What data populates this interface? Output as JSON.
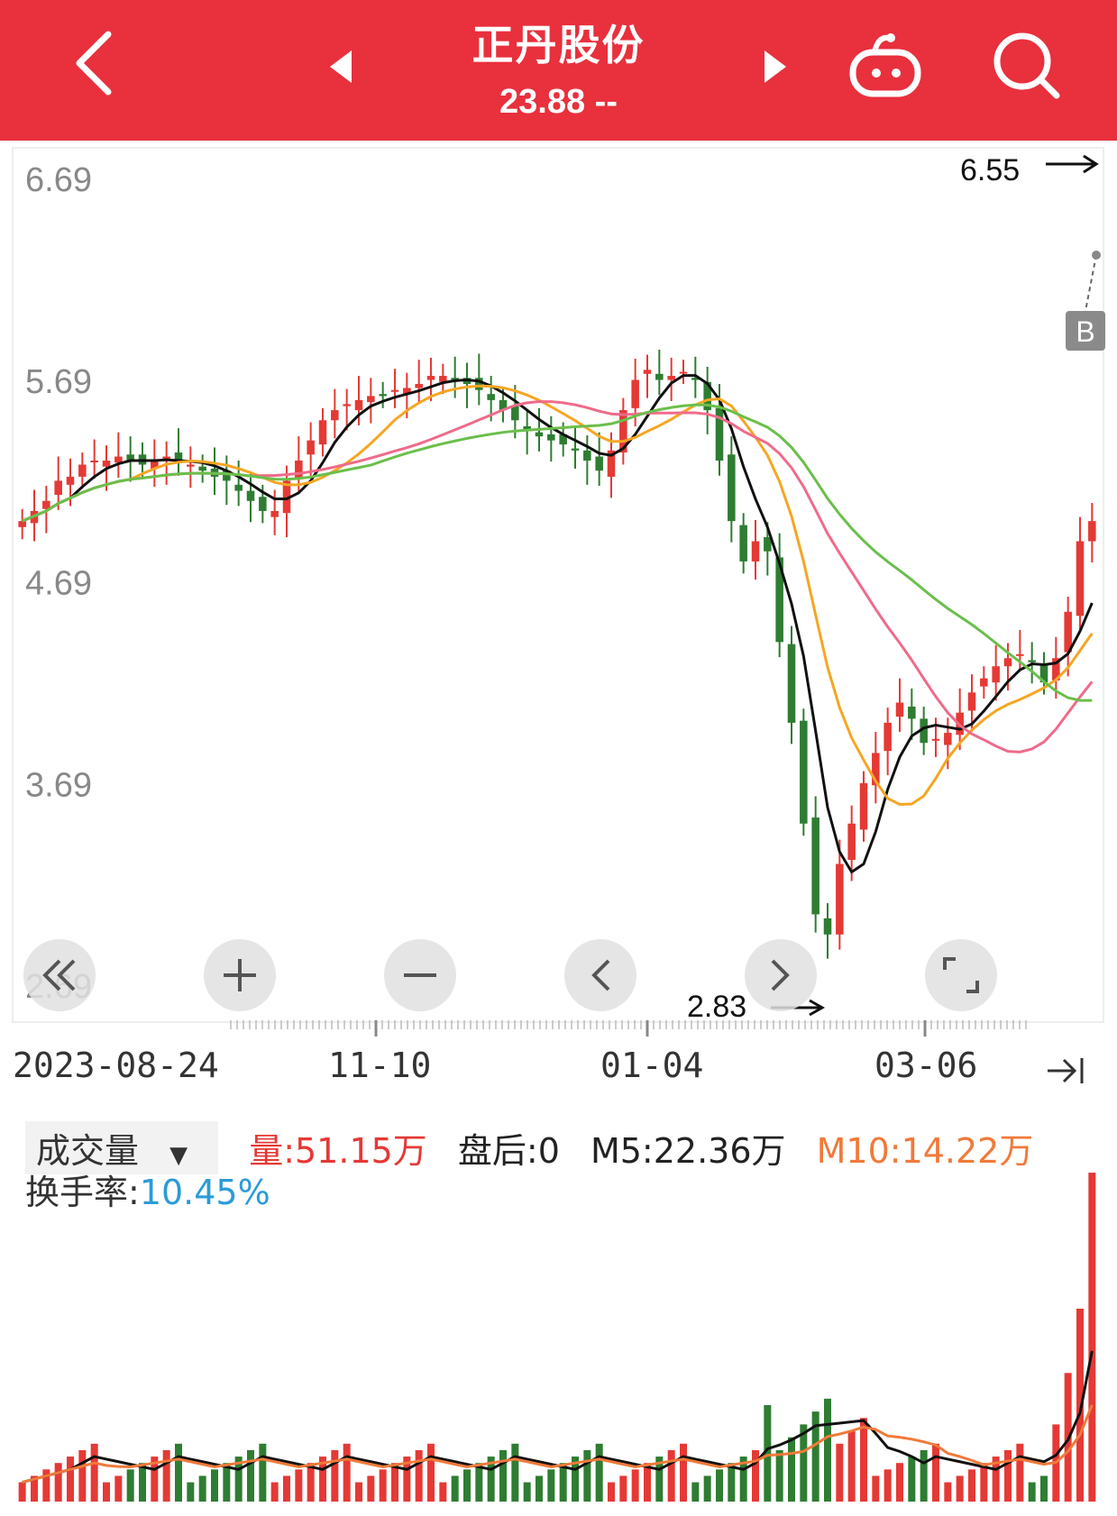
{
  "header": {
    "title": "正丹股份",
    "price": "23.88",
    "change": "--",
    "back_icon": "chevron-left-icon",
    "prev_icon": "triangle-left-icon",
    "next_icon": "triangle-right-icon",
    "bot_icon": "robot-icon",
    "search_icon": "search-icon"
  },
  "price_axis": {
    "labels": [
      "6.69",
      "5.69",
      "4.69",
      "3.69",
      "2.69"
    ]
  },
  "markers": {
    "high_label": "6.55",
    "low_label": "2.83",
    "buy_badge": "B"
  },
  "date_axis": {
    "labels": [
      "2023-08-24",
      "11-10",
      "01-04",
      "03-06"
    ]
  },
  "controls": {
    "items": [
      "rewind-icon",
      "zoom-in-icon",
      "zoom-out-icon",
      "pan-left-icon",
      "pan-right-icon",
      "expand-icon"
    ]
  },
  "volume": {
    "selector_label": "成交量",
    "volume_text": "量:51.15万",
    "after_hours_text": "盘后:0",
    "m5_text": "M5:22.36万",
    "m10_text": "M10:14.22万",
    "turnover_label": "换手率:",
    "turnover_value": "10.45%"
  },
  "colors": {
    "header_bg": "#e9303d",
    "up": "#e53935",
    "down": "#2e7d32",
    "ma5": "#111111",
    "ma10": "#f5a623",
    "ma20": "#ef6b8a",
    "ma30": "#6abf4b",
    "turnover_value": "#2b9bd8",
    "m10": "#f07a3a"
  },
  "chart_data": {
    "type": "candlestick",
    "y_ticks": [
      6.69,
      5.69,
      4.69,
      3.69,
      2.69
    ],
    "ylim": [
      2.69,
      6.69
    ],
    "x_tick_labels": [
      "2023-08-24",
      "11-10",
      "01-04",
      "03-06"
    ],
    "highest": 6.55,
    "lowest": 2.83,
    "close_series": [
      5.0,
      5.05,
      5.1,
      5.2,
      5.22,
      5.28,
      5.3,
      5.3,
      5.32,
      5.3,
      5.28,
      5.3,
      5.32,
      5.3,
      5.28,
      5.25,
      5.22,
      5.2,
      5.15,
      5.1,
      5.05,
      5.05,
      5.2,
      5.3,
      5.4,
      5.5,
      5.55,
      5.58,
      5.6,
      5.62,
      5.62,
      5.65,
      5.66,
      5.68,
      5.72,
      5.72,
      5.7,
      5.68,
      5.65,
      5.6,
      5.55,
      5.5,
      5.45,
      5.42,
      5.4,
      5.38,
      5.35,
      5.3,
      5.25,
      5.35,
      5.55,
      5.7,
      5.75,
      5.7,
      5.72,
      5.74,
      5.7,
      5.55,
      5.3,
      5.0,
      4.8,
      4.9,
      4.85,
      4.4,
      4.0,
      3.5,
      3.05,
      2.95,
      3.3,
      3.5,
      3.7,
      3.85,
      4.0,
      4.1,
      4.02,
      3.9,
      3.92,
      3.95,
      4.05,
      4.15,
      4.22,
      4.28,
      4.32,
      4.34,
      4.3,
      4.2,
      4.32,
      4.55,
      4.9,
      5.0
    ],
    "volume_ma": {
      "m5": 22.36,
      "m10": 14.22,
      "unit": "万"
    },
    "last_volume": 51.15,
    "turnover_rate": "10.45%"
  }
}
